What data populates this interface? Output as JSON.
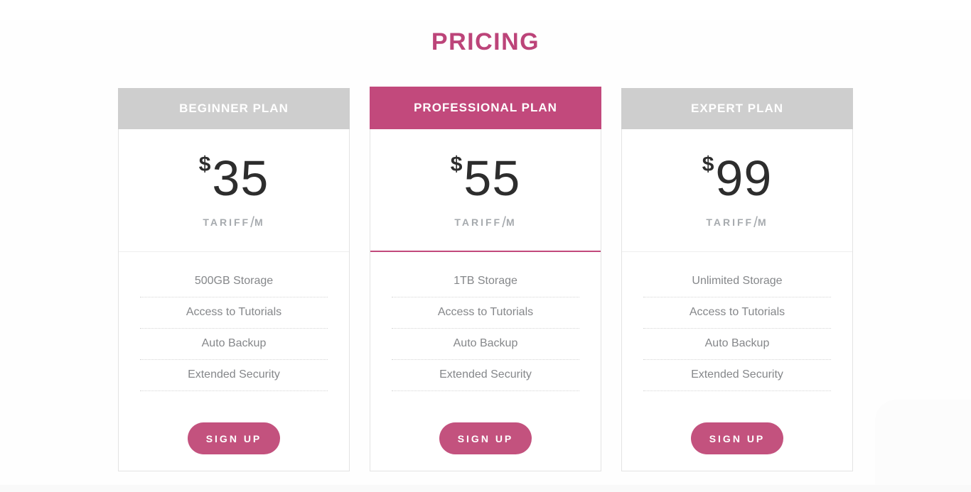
{
  "page": {
    "title": "PRICING",
    "accent_color": "#c2497c",
    "header_gray": "#cecece",
    "button_color": "#c3527e"
  },
  "plans": [
    {
      "id": "beginner",
      "name": "BEGINNER PLAN",
      "currency": "$",
      "price": "35",
      "period_label": "TARIFF",
      "period_sep": "/",
      "period_unit": "M",
      "features": [
        "500GB Storage",
        "Access to Tutorials",
        "Auto Backup",
        "Extended Security"
      ],
      "cta": "SIGN UP",
      "featured": false
    },
    {
      "id": "professional",
      "name": "PROFESSIONAL PLAN",
      "currency": "$",
      "price": "55",
      "period_label": "TARIFF",
      "period_sep": "/",
      "period_unit": "M",
      "features": [
        "1TB Storage",
        "Access to Tutorials",
        "Auto Backup",
        "Extended Security"
      ],
      "cta": "SIGN UP",
      "featured": true
    },
    {
      "id": "expert",
      "name": "EXPERT PLAN",
      "currency": "$",
      "price": "99",
      "period_label": "TARIFF",
      "period_sep": "/",
      "period_unit": "M",
      "features": [
        "Unlimited Storage",
        "Access to Tutorials",
        "Auto Backup",
        "Extended Security"
      ],
      "cta": "SIGN UP",
      "featured": false
    }
  ]
}
